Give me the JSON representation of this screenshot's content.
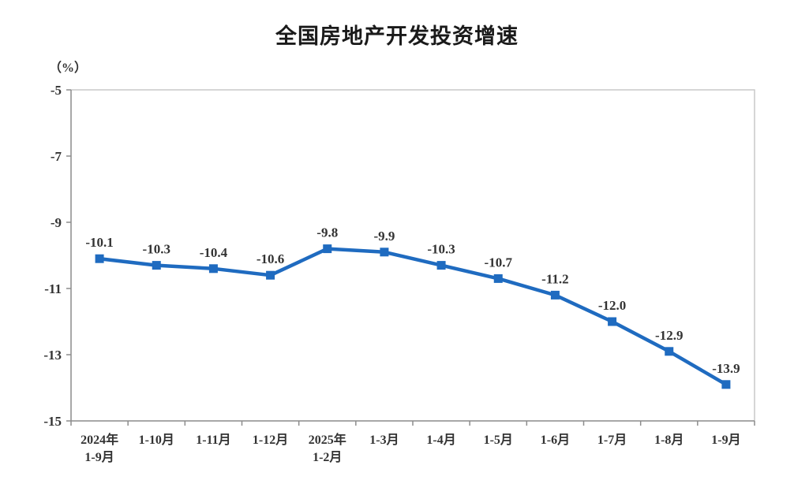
{
  "chart_data": {
    "type": "line",
    "title": "全国房地产开发投资增速",
    "unit_label": "（%）",
    "categories": [
      [
        "2024年",
        "1-9月"
      ],
      [
        "1-10月"
      ],
      [
        "1-11月"
      ],
      [
        "1-12月"
      ],
      [
        "2025年",
        "1-2月"
      ],
      [
        "1-3月"
      ],
      [
        "1-4月"
      ],
      [
        "1-5月"
      ],
      [
        "1-6月"
      ],
      [
        "1-7月"
      ],
      [
        "1-8月"
      ],
      [
        "1-9月"
      ]
    ],
    "values": [
      -10.1,
      -10.3,
      -10.4,
      -10.6,
      -9.8,
      -9.9,
      -10.3,
      -10.7,
      -11.2,
      -12.0,
      -12.9,
      -13.9
    ],
    "data_labels": [
      "-10.1",
      "-10.3",
      "-10.4",
      "-10.6",
      "-9.8",
      "-9.9",
      "-10.3",
      "-10.7",
      "-11.2",
      "-12.0",
      "-12.9",
      "-13.9"
    ],
    "ylim": [
      -15,
      -5
    ],
    "yticks": [
      -5,
      -7,
      -9,
      -11,
      -13,
      -15
    ],
    "grid": false,
    "legend": "none",
    "marker": "square",
    "colors": {
      "line": "#1F6BC0",
      "text": "#333333",
      "axis": "#8C8C8C",
      "frame": "#C9C9C9",
      "title": "#1a1a1a"
    }
  }
}
